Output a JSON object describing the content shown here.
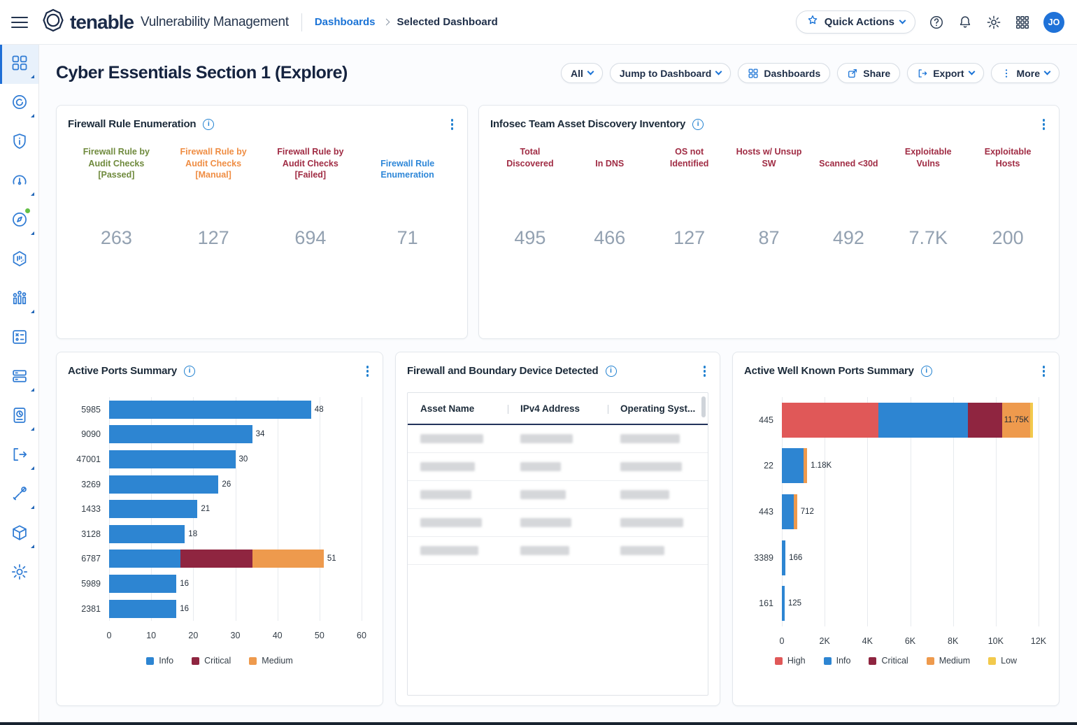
{
  "header": {
    "brand": "tenable",
    "product": "Vulnerability Management",
    "breadcrumb_root": "Dashboards",
    "breadcrumb_current": "Selected Dashboard",
    "quick_actions_label": "Quick Actions",
    "avatar_initials": "JO"
  },
  "page": {
    "title": "Cyber Essentials Section 1 (Explore)",
    "toolbar": [
      {
        "label": "All",
        "icon": null,
        "chevron": true
      },
      {
        "label": "Jump to Dashboard",
        "icon": null,
        "chevron": true
      },
      {
        "label": "Dashboards",
        "icon": "grid-icon",
        "chevron": false
      },
      {
        "label": "Share",
        "icon": "share-icon",
        "chevron": false
      },
      {
        "label": "Export",
        "icon": "export-icon",
        "chevron": true
      },
      {
        "label": "More",
        "icon": "kebab-icon",
        "chevron": true
      }
    ]
  },
  "sidebar": {
    "items": [
      {
        "icon": "grid-icon",
        "active": true,
        "flyout": true
      },
      {
        "icon": "explore-icon",
        "active": false,
        "flyout": true
      },
      {
        "icon": "shield-info-icon",
        "active": false,
        "flyout": false
      },
      {
        "icon": "gauge-icon",
        "active": false,
        "flyout": true
      },
      {
        "icon": "compass-icon",
        "active": false,
        "flyout": true,
        "status_dot": "#64bf47"
      },
      {
        "icon": "hexagon-icon",
        "active": false,
        "flyout": false
      },
      {
        "icon": "chart-nodes-icon",
        "active": false,
        "flyout": true
      },
      {
        "icon": "checklist-icon",
        "active": false,
        "flyout": false
      },
      {
        "icon": "stacked-rows-icon",
        "active": false,
        "flyout": true
      },
      {
        "icon": "report-doc-icon",
        "active": false,
        "flyout": true
      },
      {
        "icon": "export-icon",
        "active": false,
        "flyout": true
      },
      {
        "icon": "tools-icon",
        "active": false,
        "flyout": true
      },
      {
        "icon": "package-icon",
        "active": false,
        "flyout": true
      },
      {
        "icon": "settings-gear-icon",
        "active": false,
        "flyout": false
      }
    ]
  },
  "metric_widgets": {
    "firewall_rule": {
      "title": "Firewall Rule Enumeration",
      "value_color": "#93a1b1",
      "metrics": [
        {
          "label": "Firewall Rule by Audit Checks [Passed]",
          "value": "263",
          "label_color": "#6f8a3d"
        },
        {
          "label": "Firewall Rule by Audit Checks [Manual]",
          "value": "127",
          "label_color": "#ef8d43"
        },
        {
          "label": "Firewall Rule by Audit Checks [Failed]",
          "value": "694",
          "label_color": "#a02c44"
        },
        {
          "label": "Firewall Rule Enumeration",
          "value": "71",
          "label_color": "#2e87d8"
        }
      ]
    },
    "infosec_inventory": {
      "title": "Infosec Team Asset Discovery Inventory",
      "label_color": "#a02c44",
      "value_color": "#93a1b1",
      "metrics": [
        {
          "label": "Total Discovered",
          "value": "495"
        },
        {
          "label": "In DNS",
          "value": "466"
        },
        {
          "label": "OS not Identified",
          "value": "127"
        },
        {
          "label": "Hosts w/ Unsup SW",
          "value": "87"
        },
        {
          "label": "Scanned <30d",
          "value": "492"
        },
        {
          "label": "Exploitable Vulns",
          "value": "7.7K"
        },
        {
          "label": "Exploitable Hosts",
          "value": "200"
        }
      ]
    }
  },
  "table_widget": {
    "title": "Firewall and Boundary Device Detected",
    "columns": [
      "Asset Name",
      "IPv4 Address",
      "Operating Syst..."
    ],
    "rows_redacted": 5
  },
  "chart_data": [
    {
      "type": "bar",
      "orientation": "horizontal",
      "title": "Active Ports Summary",
      "categories": [
        "5985",
        "9090",
        "47001",
        "3269",
        "1433",
        "3128",
        "6787",
        "5989",
        "2381"
      ],
      "series": [
        {
          "name": "Info",
          "color": "#2d85d2",
          "values": [
            48,
            34,
            30,
            26,
            21,
            18,
            17,
            16,
            16
          ]
        },
        {
          "name": "Critical",
          "color": "#8f2540",
          "values": [
            0,
            0,
            0,
            0,
            0,
            0,
            17,
            0,
            0
          ]
        },
        {
          "name": "Medium",
          "color": "#ee9a4d",
          "values": [
            0,
            0,
            0,
            0,
            0,
            0,
            17,
            0,
            0
          ]
        }
      ],
      "total_labels": [
        "48",
        "34",
        "30",
        "26",
        "21",
        "18",
        "51",
        "16",
        "16"
      ],
      "xlim": [
        0,
        60
      ],
      "xticks": [
        "0",
        "10",
        "20",
        "30",
        "40",
        "50",
        "60"
      ],
      "grid": true,
      "legend": [
        "Info",
        "Critical",
        "Medium"
      ],
      "legend_position": "bottom"
    },
    {
      "type": "bar",
      "orientation": "horizontal",
      "title": "Active Well Known Ports Summary",
      "categories": [
        "445",
        "22",
        "443",
        "3389",
        "161"
      ],
      "series": [
        {
          "name": "High",
          "color": "#e05858",
          "values": [
            4500,
            0,
            0,
            0,
            0
          ]
        },
        {
          "name": "Info",
          "color": "#2d85d2",
          "values": [
            4200,
            1000,
            560,
            166,
            125
          ]
        },
        {
          "name": "Critical",
          "color": "#8f2540",
          "values": [
            1600,
            0,
            0,
            0,
            0
          ]
        },
        {
          "name": "Medium",
          "color": "#ee9a4d",
          "values": [
            1300,
            180,
            152,
            0,
            0
          ]
        },
        {
          "name": "Low",
          "color": "#f2c94c",
          "values": [
            150,
            0,
            0,
            0,
            0
          ]
        }
      ],
      "total_labels": [
        "11.75K",
        "1.18K",
        "712",
        "166",
        "125"
      ],
      "xlim": [
        0,
        12000
      ],
      "xticks": [
        "0",
        "2K",
        "4K",
        "6K",
        "8K",
        "10K",
        "12K"
      ],
      "grid": true,
      "legend": [
        "High",
        "Info",
        "Critical",
        "Medium",
        "Low"
      ],
      "legend_position": "bottom"
    }
  ]
}
